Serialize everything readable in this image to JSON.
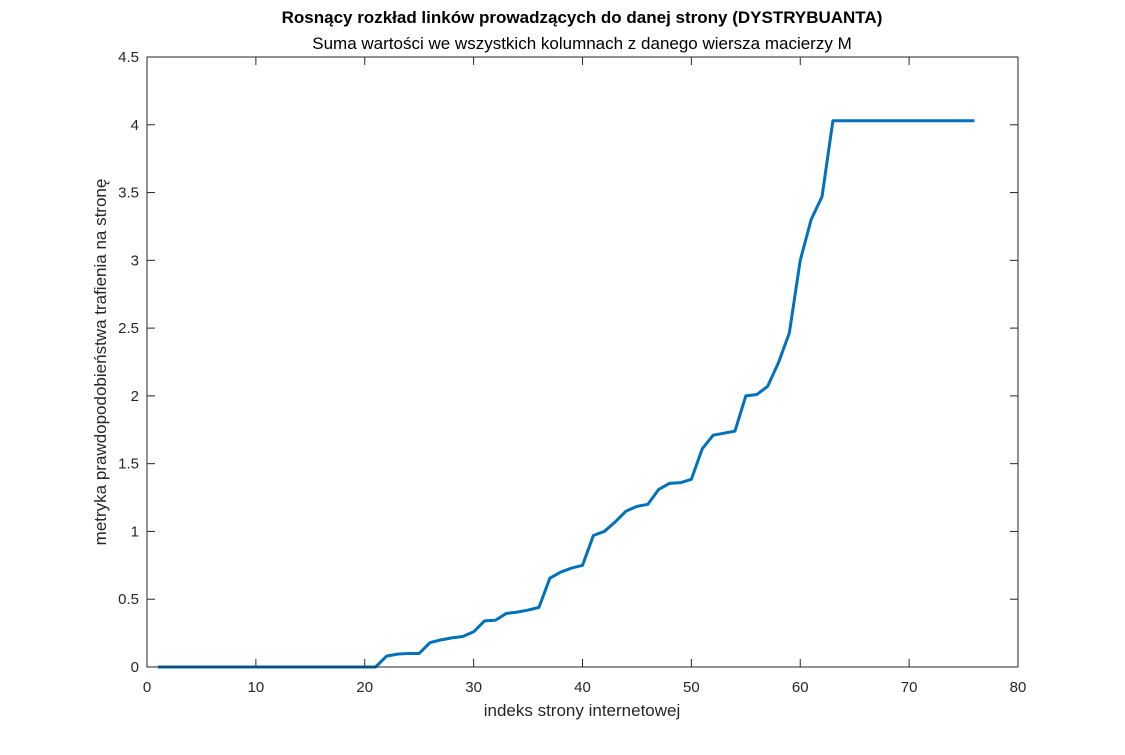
{
  "chart_data": {
    "type": "line",
    "title": "Rosnący rozkład linków prowadzących do danej strony (DYSTRYBUANTA)",
    "subtitle": "Suma wartości we wszystkich kolumnach z danego wiersza macierzy M",
    "xlabel": "indeks strony internetowej",
    "ylabel": "metryka prawdopodobieństwa trafienia na stronę",
    "xlim": [
      0,
      80
    ],
    "ylim": [
      0,
      4.5
    ],
    "xticks": [
      0,
      10,
      20,
      30,
      40,
      50,
      60,
      70,
      80
    ],
    "yticks": [
      0,
      0.5,
      1,
      1.5,
      2,
      2.5,
      3,
      3.5,
      4,
      4.5
    ],
    "grid": false,
    "line_color": "#0072BD",
    "series": [
      {
        "x": [
          1,
          2,
          3,
          4,
          5,
          6,
          7,
          8,
          9,
          10,
          11,
          12,
          13,
          14,
          15,
          16,
          17,
          18,
          19,
          20,
          21,
          22,
          23,
          24,
          25,
          26,
          27,
          28,
          29,
          30,
          31,
          32,
          33,
          34,
          35,
          36,
          37,
          38,
          39,
          40,
          41,
          42,
          43,
          44,
          45,
          46,
          47,
          48,
          49,
          50,
          51,
          52,
          53,
          54,
          55,
          56,
          57,
          58,
          59,
          60,
          61,
          62,
          63,
          64,
          65,
          66,
          67,
          68,
          69,
          70,
          71,
          72,
          73,
          74,
          75,
          76
        ],
        "y": [
          0,
          0,
          0,
          0,
          0,
          0,
          0,
          0,
          0,
          0,
          0,
          0,
          0,
          0,
          0,
          0,
          0,
          0,
          0,
          0,
          0,
          0.08,
          0.095,
          0.1,
          0.1,
          0.18,
          0.2,
          0.215,
          0.225,
          0.26,
          0.34,
          0.345,
          0.395,
          0.405,
          0.42,
          0.44,
          0.655,
          0.7,
          0.73,
          0.75,
          0.97,
          1.0,
          1.07,
          1.15,
          1.185,
          1.2,
          1.31,
          1.355,
          1.36,
          1.385,
          1.61,
          1.71,
          1.725,
          1.74,
          2.0,
          2.01,
          2.07,
          2.245,
          2.465,
          3.0,
          3.3,
          3.47,
          4.03,
          4.03,
          4.03,
          4.03,
          4.03,
          4.03,
          4.03,
          4.03,
          4.03,
          4.03,
          4.03,
          4.03,
          4.03,
          4.03
        ]
      }
    ]
  }
}
